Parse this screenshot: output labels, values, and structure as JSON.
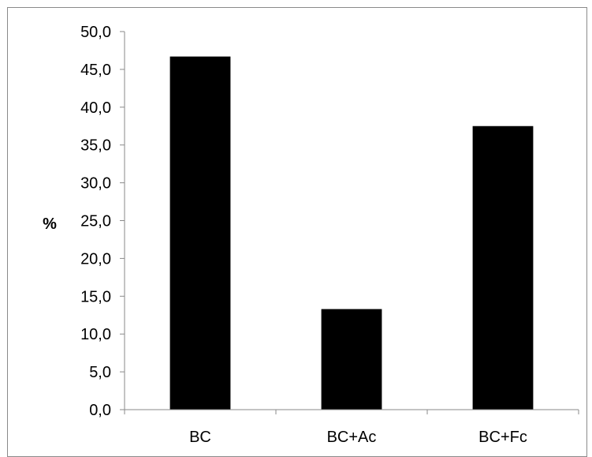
{
  "chart_data": {
    "type": "bar",
    "title": "",
    "xlabel": "",
    "ylabel": "%",
    "categories": [
      "BC",
      "BC+Ac",
      "BC+Fc"
    ],
    "values": [
      46.7,
      13.3,
      37.5
    ],
    "ylim": [
      0,
      50
    ],
    "yticks": [
      "0,0",
      "5,0",
      "10,0",
      "15,0",
      "20,0",
      "25,0",
      "30,0",
      "35,0",
      "40,0",
      "45,0",
      "50,0"
    ],
    "grid": false,
    "legend": "none",
    "bar_color": "#000000",
    "axis_color": "#8a8a8a"
  }
}
